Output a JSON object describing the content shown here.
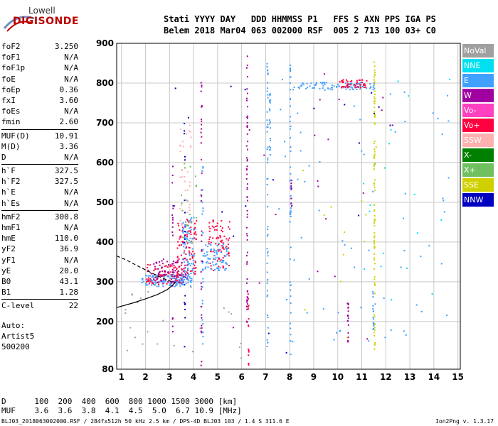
{
  "logo": {
    "line1": "Lowell",
    "line2": "DIGISONDE"
  },
  "header": {
    "line1": "Stati YYYY DAY   DDD HHMMSS P1   FFS S AXN PPS IGA PS",
    "line2": "Belem 2018 Mar04 063 002000 RSF  005 2 713 100 03+ C0"
  },
  "params": [
    {
      "name": "foF2",
      "value": "3.250"
    },
    {
      "name": "foF1",
      "value": "N/A"
    },
    {
      "name": "foF1p",
      "value": "N/A"
    },
    {
      "name": "foE",
      "value": "N/A"
    },
    {
      "name": "foEp",
      "value": "0.36"
    },
    {
      "name": "fxI",
      "value": "3.60"
    },
    {
      "name": "foEs",
      "value": "N/A"
    },
    {
      "name": "fmin",
      "value": "2.60"
    },
    {
      "name": "MUF(D)",
      "value": "10.91"
    },
    {
      "name": "M(D)",
      "value": "3.36"
    },
    {
      "name": "D",
      "value": "N/A"
    },
    {
      "name": "h`F",
      "value": "327.5"
    },
    {
      "name": "h`F2",
      "value": "327.5"
    },
    {
      "name": "h`E",
      "value": "N/A"
    },
    {
      "name": "h`Es",
      "value": "N/A"
    },
    {
      "name": "hmF2",
      "value": "300.8"
    },
    {
      "name": "hmF1",
      "value": "N/A"
    },
    {
      "name": "hmE",
      "value": "110.0"
    },
    {
      "name": "yF2",
      "value": "36.9"
    },
    {
      "name": "yF1",
      "value": "N/A"
    },
    {
      "name": "yE",
      "value": "20.0"
    },
    {
      "name": "B0",
      "value": "43.1"
    },
    {
      "name": "B1",
      "value": "1.28"
    },
    {
      "name": "C-level",
      "value": "22"
    }
  ],
  "auto": {
    "line1": "Auto:",
    "line2": "Artist5",
    "line3": "500200"
  },
  "legend": [
    {
      "label": "NoVal",
      "color": "#a0a0a0"
    },
    {
      "label": "NNE",
      "color": "#00e0f0"
    },
    {
      "label": "E",
      "color": "#40a0ff"
    },
    {
      "label": "W",
      "color": "#a000a0"
    },
    {
      "label": "Vo-",
      "color": "#ff40c0"
    },
    {
      "label": "Vo+",
      "color": "#ff0040"
    },
    {
      "label": "SSW",
      "color": "#ffb0b0"
    },
    {
      "label": "X-",
      "color": "#008000"
    },
    {
      "label": "X+",
      "color": "#70c060"
    },
    {
      "label": "SSE",
      "color": "#d0d000"
    },
    {
      "label": "NNW",
      "color": "#0000c0"
    }
  ],
  "muf_table": {
    "d_line": "D      100  200  400  600  800 1000 1500 3000 [km]",
    "muf_line": "MUF    3.6  3.6  3.8  4.1  4.5  5.0  6.7 10.9 [MHz]"
  },
  "footer": {
    "left": "BLJ03_2018063002000.RSF / 284fx512h 50 kHz 2.5 km / DPS-4D BLJ03 103 / 1.4 S 311.6 E",
    "right": "Ion2Png v. 1.3.17"
  },
  "chart_data": {
    "type": "scatter",
    "xlim": [
      0.8,
      15.1
    ],
    "ylim": [
      80,
      900
    ],
    "x_ticks": [
      1,
      2,
      3,
      4,
      5,
      6,
      7,
      8,
      9,
      10,
      11,
      12,
      13,
      14,
      15
    ],
    "y_ticks": [
      80,
      200,
      300,
      400,
      500,
      600,
      700,
      800,
      900
    ],
    "grid": true,
    "legend_position": "right",
    "profile_solid": [
      [
        0.8,
        235
      ],
      [
        1.5,
        247
      ],
      [
        2.0,
        257
      ],
      [
        2.5,
        268
      ],
      [
        2.9,
        280
      ],
      [
        3.1,
        290
      ],
      [
        3.25,
        300
      ]
    ],
    "profile_dashed": [
      [
        0.8,
        365
      ],
      [
        1.2,
        355
      ],
      [
        1.6,
        342
      ],
      [
        2.0,
        330
      ],
      [
        2.4,
        318
      ],
      [
        2.8,
        307
      ],
      [
        3.1,
        300
      ]
    ],
    "clusters": [
      {
        "name": "F2 trace low",
        "color": "#40a0ff",
        "x": [
          1.8,
          3.9
        ],
        "y": [
          290,
          320
        ],
        "n": 130
      },
      {
        "name": "F2 trace mixed",
        "color": "#ff0040",
        "x": [
          2.0,
          3.6
        ],
        "y": [
          295,
          345
        ],
        "n": 90
      },
      {
        "name": "F2 trace W",
        "color": "#a000a0",
        "x": [
          2.2,
          3.8
        ],
        "y": [
          300,
          360
        ],
        "n": 70
      },
      {
        "name": "F2 spread 1",
        "color": "#ff0040",
        "x": [
          3.3,
          4.1
        ],
        "y": [
          320,
          460
        ],
        "n": 90
      },
      {
        "name": "F2 spread 2",
        "color": "#40a0ff",
        "x": [
          3.5,
          4.0
        ],
        "y": [
          300,
          470
        ],
        "n": 80
      },
      {
        "name": "F2 spread 3",
        "color": "#ff0040",
        "x": [
          4.6,
          5.5
        ],
        "y": [
          330,
          460
        ],
        "n": 80
      },
      {
        "name": "F2 spread 4",
        "color": "#40a0ff",
        "x": [
          4.4,
          5.4
        ],
        "y": [
          330,
          400
        ],
        "n": 70
      },
      {
        "name": "F2 spread SSW",
        "color": "#ffb0b0",
        "x": [
          3.4,
          3.9
        ],
        "y": [
          440,
          700
        ],
        "n": 40
      },
      {
        "name": "X+ scatter",
        "color": "#70c060",
        "x": [
          3.4,
          4.1
        ],
        "y": [
          380,
          600
        ],
        "n": 20
      },
      {
        "name": "E band 800",
        "color": "#40a0ff",
        "x": [
          8.1,
          11.5
        ],
        "y": [
          785,
          805
        ],
        "n": 90
      },
      {
        "name": "Vo+ band 800",
        "color": "#ff0040",
        "x": [
          10.0,
          11.2
        ],
        "y": [
          790,
          810
        ],
        "n": 50
      },
      {
        "name": "upper scatter",
        "color": "#40a0ff",
        "x": [
          7.3,
          14.8
        ],
        "y": [
          150,
          820
        ],
        "n": 70
      },
      {
        "name": "NNE sparse",
        "color": "#00e0f0",
        "x": [
          11.0,
          14.9
        ],
        "y": [
          120,
          850
        ],
        "n": 18
      },
      {
        "name": "W sparse",
        "color": "#a000a0",
        "x": [
          5.5,
          12.4
        ],
        "y": [
          120,
          870
        ],
        "n": 20
      },
      {
        "name": "NNW sparse",
        "color": "#0000c0",
        "x": [
          3.0,
          12.4
        ],
        "y": [
          90,
          890
        ],
        "n": 20
      },
      {
        "name": "SSE sparse",
        "color": "#d0d000",
        "x": [
          8.2,
          12.2
        ],
        "y": [
          150,
          820
        ],
        "n": 12
      },
      {
        "name": "low noise",
        "color": "#a0a0a0",
        "x": [
          1.0,
          6.0
        ],
        "y": [
          90,
          300
        ],
        "n": 25
      }
    ],
    "columns": [
      {
        "x": 4.3,
        "ymin": 90,
        "ymax": 880,
        "color": "#a000a0",
        "n": 40
      },
      {
        "x": 4.35,
        "ymin": 120,
        "ymax": 600,
        "color": "#40a0ff",
        "n": 25
      },
      {
        "x": 6.2,
        "ymin": 200,
        "ymax": 880,
        "color": "#a000a0",
        "n": 60
      },
      {
        "x": 6.25,
        "ymin": 90,
        "ymax": 280,
        "color": "#ff0040",
        "n": 15
      },
      {
        "x": 7.05,
        "ymin": 90,
        "ymax": 860,
        "color": "#40a0ff",
        "n": 50
      },
      {
        "x": 7.15,
        "ymin": 620,
        "ymax": 780,
        "color": "#40a0ff",
        "n": 20
      },
      {
        "x": 8.0,
        "ymin": 100,
        "ymax": 850,
        "color": "#40a0ff",
        "n": 50
      },
      {
        "x": 8.05,
        "ymin": 450,
        "ymax": 560,
        "color": "#a000a0",
        "n": 10
      },
      {
        "x": 11.5,
        "ymin": 120,
        "ymax": 860,
        "color": "#d0d000",
        "n": 90
      },
      {
        "x": 11.45,
        "ymin": 180,
        "ymax": 280,
        "color": "#40a0ff",
        "n": 15
      },
      {
        "x": 10.4,
        "ymin": 150,
        "ymax": 250,
        "color": "#a000a0",
        "n": 20
      },
      {
        "x": 3.6,
        "ymin": 90,
        "ymax": 700,
        "color": "#0000c0",
        "n": 20
      },
      {
        "x": 3.1,
        "ymin": 90,
        "ymax": 680,
        "color": "#a000a0",
        "n": 20
      }
    ]
  }
}
